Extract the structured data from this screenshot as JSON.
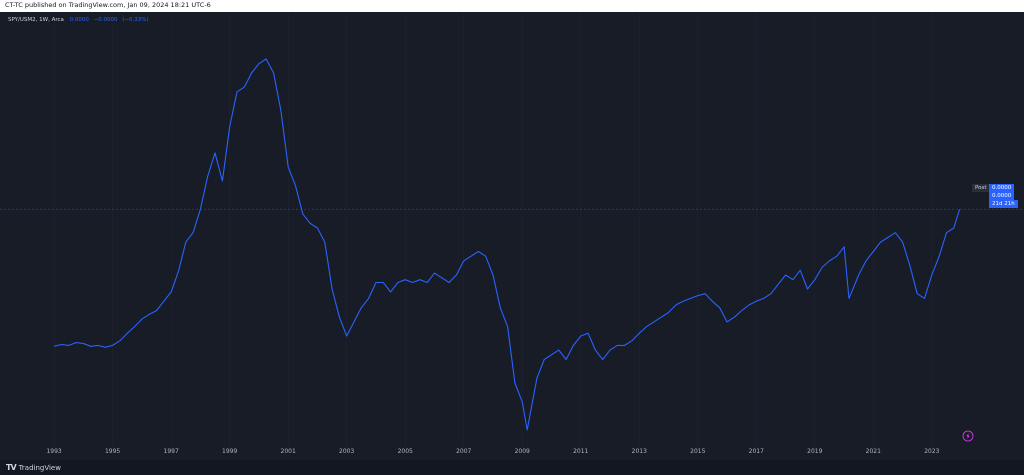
{
  "header": {
    "published_text": "CT-TC published on TradingView.com, Jan 09, 2024 18:21 UTC-6"
  },
  "legend": {
    "symbol": "SPY/USM2, 1W, Arca",
    "value": "0.0000",
    "change": "−0.0000",
    "change_pct": "(−0.33%)"
  },
  "price_scale": {
    "post_label": "Post",
    "post_value": "0.0000",
    "last_value": "0.0000",
    "countdown": "21d 21h"
  },
  "footer": {
    "logo_mark": "TV",
    "logo_text": "TradingView"
  },
  "colors": {
    "background": "#181c27",
    "line": "#2962ff",
    "grid": "#1f2433",
    "axis_text": "#b2b5be",
    "tag_bg": "#2962ff"
  },
  "icons": [
    "flash-icon",
    "tradingview-logo-icon"
  ],
  "chart_data": {
    "type": "line",
    "title": "",
    "series": [
      {
        "values": [
          {
            "x": 1993.0,
            "y": 24
          },
          {
            "x": 1993.25,
            "y": 26
          },
          {
            "x": 1993.5,
            "y": 25
          },
          {
            "x": 1993.75,
            "y": 28
          },
          {
            "x": 1994.0,
            "y": 27
          },
          {
            "x": 1994.25,
            "y": 24
          },
          {
            "x": 1994.5,
            "y": 25
          },
          {
            "x": 1994.75,
            "y": 23
          },
          {
            "x": 1995.0,
            "y": 25
          },
          {
            "x": 1995.25,
            "y": 30
          },
          {
            "x": 1995.5,
            "y": 38
          },
          {
            "x": 1995.75,
            "y": 45
          },
          {
            "x": 1996.0,
            "y": 53
          },
          {
            "x": 1996.25,
            "y": 58
          },
          {
            "x": 1996.5,
            "y": 62
          },
          {
            "x": 1996.75,
            "y": 72
          },
          {
            "x": 1997.0,
            "y": 82
          },
          {
            "x": 1997.25,
            "y": 104
          },
          {
            "x": 1997.5,
            "y": 135
          },
          {
            "x": 1997.75,
            "y": 145
          },
          {
            "x": 1998.0,
            "y": 170
          },
          {
            "x": 1998.25,
            "y": 205
          },
          {
            "x": 1998.5,
            "y": 230
          },
          {
            "x": 1998.75,
            "y": 200
          },
          {
            "x": 1999.0,
            "y": 258
          },
          {
            "x": 1999.25,
            "y": 295
          },
          {
            "x": 1999.5,
            "y": 300
          },
          {
            "x": 1999.75,
            "y": 315
          },
          {
            "x": 2000.0,
            "y": 325
          },
          {
            "x": 2000.25,
            "y": 330
          },
          {
            "x": 2000.5,
            "y": 315
          },
          {
            "x": 2000.75,
            "y": 275
          },
          {
            "x": 2001.0,
            "y": 215
          },
          {
            "x": 2001.25,
            "y": 195
          },
          {
            "x": 2001.5,
            "y": 165
          },
          {
            "x": 2001.75,
            "y": 155
          },
          {
            "x": 2002.0,
            "y": 150
          },
          {
            "x": 2002.25,
            "y": 135
          },
          {
            "x": 2002.5,
            "y": 85
          },
          {
            "x": 2002.75,
            "y": 55
          },
          {
            "x": 2003.0,
            "y": 35
          },
          {
            "x": 2003.25,
            "y": 50
          },
          {
            "x": 2003.5,
            "y": 65
          },
          {
            "x": 2003.75,
            "y": 75
          },
          {
            "x": 2004.0,
            "y": 92
          },
          {
            "x": 2004.25,
            "y": 92
          },
          {
            "x": 2004.5,
            "y": 82
          },
          {
            "x": 2004.75,
            "y": 92
          },
          {
            "x": 2005.0,
            "y": 95
          },
          {
            "x": 2005.25,
            "y": 92
          },
          {
            "x": 2005.5,
            "y": 95
          },
          {
            "x": 2005.75,
            "y": 92
          },
          {
            "x": 2006.0,
            "y": 102
          },
          {
            "x": 2006.25,
            "y": 97
          },
          {
            "x": 2006.5,
            "y": 92
          },
          {
            "x": 2006.75,
            "y": 100
          },
          {
            "x": 2007.0,
            "y": 115
          },
          {
            "x": 2007.25,
            "y": 120
          },
          {
            "x": 2007.5,
            "y": 125
          },
          {
            "x": 2007.75,
            "y": 120
          },
          {
            "x": 2008.0,
            "y": 100
          },
          {
            "x": 2008.25,
            "y": 65
          },
          {
            "x": 2008.5,
            "y": 45
          },
          {
            "x": 2008.75,
            "y": -15
          },
          {
            "x": 2009.0,
            "y": -35
          },
          {
            "x": 2009.17,
            "y": -65
          },
          {
            "x": 2009.5,
            "y": -10
          },
          {
            "x": 2009.75,
            "y": 10
          },
          {
            "x": 2010.0,
            "y": 15
          },
          {
            "x": 2010.25,
            "y": 20
          },
          {
            "x": 2010.5,
            "y": 10
          },
          {
            "x": 2010.75,
            "y": 25
          },
          {
            "x": 2011.0,
            "y": 35
          },
          {
            "x": 2011.25,
            "y": 38
          },
          {
            "x": 2011.5,
            "y": 20
          },
          {
            "x": 2011.75,
            "y": 10
          },
          {
            "x": 2012.0,
            "y": 20
          },
          {
            "x": 2012.25,
            "y": 25
          },
          {
            "x": 2012.5,
            "y": 25
          },
          {
            "x": 2012.75,
            "y": 30
          },
          {
            "x": 2013.0,
            "y": 38
          },
          {
            "x": 2013.25,
            "y": 45
          },
          {
            "x": 2013.5,
            "y": 50
          },
          {
            "x": 2013.75,
            "y": 55
          },
          {
            "x": 2014.0,
            "y": 60
          },
          {
            "x": 2014.25,
            "y": 68
          },
          {
            "x": 2014.5,
            "y": 72
          },
          {
            "x": 2014.75,
            "y": 75
          },
          {
            "x": 2015.0,
            "y": 78
          },
          {
            "x": 2015.25,
            "y": 80
          },
          {
            "x": 2015.5,
            "y": 72
          },
          {
            "x": 2015.75,
            "y": 65
          },
          {
            "x": 2016.0,
            "y": 50
          },
          {
            "x": 2016.25,
            "y": 55
          },
          {
            "x": 2016.5,
            "y": 62
          },
          {
            "x": 2016.75,
            "y": 68
          },
          {
            "x": 2017.0,
            "y": 72
          },
          {
            "x": 2017.25,
            "y": 75
          },
          {
            "x": 2017.5,
            "y": 80
          },
          {
            "x": 2017.75,
            "y": 90
          },
          {
            "x": 2018.0,
            "y": 100
          },
          {
            "x": 2018.25,
            "y": 95
          },
          {
            "x": 2018.5,
            "y": 105
          },
          {
            "x": 2018.75,
            "y": 85
          },
          {
            "x": 2019.0,
            "y": 95
          },
          {
            "x": 2019.25,
            "y": 108
          },
          {
            "x": 2019.5,
            "y": 115
          },
          {
            "x": 2019.75,
            "y": 120
          },
          {
            "x": 2020.0,
            "y": 130
          },
          {
            "x": 2020.17,
            "y": 75
          },
          {
            "x": 2020.5,
            "y": 100
          },
          {
            "x": 2020.75,
            "y": 115
          },
          {
            "x": 2021.0,
            "y": 125
          },
          {
            "x": 2021.25,
            "y": 135
          },
          {
            "x": 2021.5,
            "y": 140
          },
          {
            "x": 2021.75,
            "y": 145
          },
          {
            "x": 2022.0,
            "y": 135
          },
          {
            "x": 2022.25,
            "y": 110
          },
          {
            "x": 2022.5,
            "y": 80
          },
          {
            "x": 2022.75,
            "y": 75
          },
          {
            "x": 2023.0,
            "y": 100
          },
          {
            "x": 2023.25,
            "y": 120
          },
          {
            "x": 2023.5,
            "y": 145
          },
          {
            "x": 2023.75,
            "y": 150
          },
          {
            "x": 2023.95,
            "y": 170
          }
        ]
      }
    ],
    "xlim": [
      1991.15,
      2026.15
    ],
    "ylim": [
      -80,
      380
    ],
    "x_ticks": [
      "1993",
      "1995",
      "1997",
      "1999",
      "2001",
      "2003",
      "2005",
      "2007",
      "2009",
      "2011",
      "2013",
      "2015",
      "2017",
      "2019",
      "2021",
      "2023"
    ],
    "grid": true,
    "legend_placement": "top-left"
  }
}
